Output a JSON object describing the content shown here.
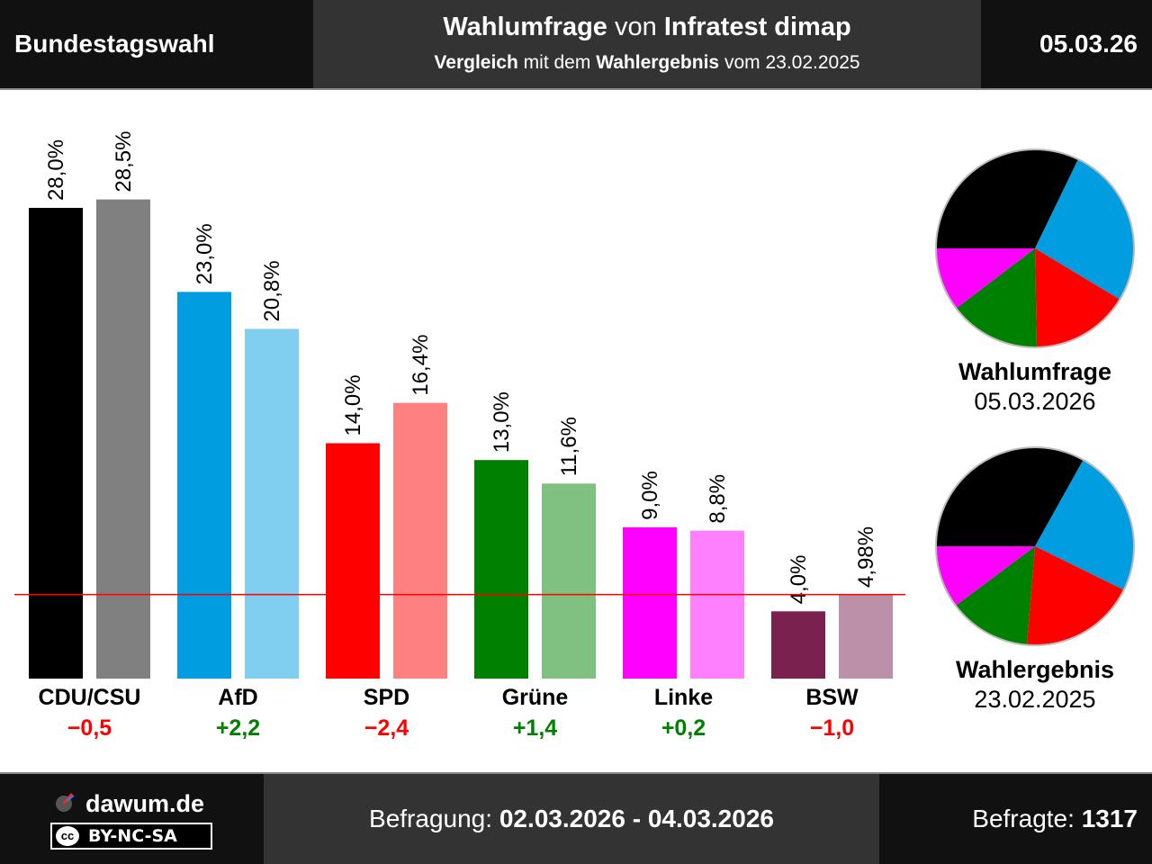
{
  "header": {
    "left_title": "Bundestagswahl",
    "mid_line1_bold1": "Wahlumfrage",
    "mid_line1_normal": "von",
    "mid_line1_bold2": "Infratest dimap",
    "mid_line2_bold1": "Vergleich",
    "mid_line2_normal1": "mit dem",
    "mid_line2_bold2": "Wahlergebnis",
    "mid_line2_normal2": "vom 23.02.2025",
    "date": "05.03.26"
  },
  "chart_data": {
    "type": "bar",
    "categories": [
      "CDU/CSU",
      "AfD",
      "SPD",
      "Grüne",
      "Linke",
      "BSW"
    ],
    "series": [
      {
        "name": "Wahlumfrage",
        "values": [
          28.0,
          23.0,
          14.0,
          13.0,
          9.0,
          4.0
        ],
        "labels": [
          "28,0%",
          "23,0%",
          "14,0%",
          "13,0%",
          "9,0%",
          "4,0%"
        ],
        "colors": [
          "#000000",
          "#009ee0",
          "#ff0000",
          "#008000",
          "#ff00ff",
          "#7a2150"
        ]
      },
      {
        "name": "Wahlergebnis",
        "values": [
          28.5,
          20.8,
          16.4,
          11.6,
          8.8,
          4.98
        ],
        "labels": [
          "28,5%",
          "20,8%",
          "16,4%",
          "11,6%",
          "8,8%",
          "4,98%"
        ],
        "colors": [
          "#808080",
          "#80cff0",
          "#ff8080",
          "#80c080",
          "#ff80ff",
          "#bc90a8"
        ]
      }
    ],
    "differences": [
      "−0,5",
      "+2,2",
      "−2,4",
      "+1,4",
      "+0,2",
      "−1,0"
    ],
    "difference_colors": [
      "#ff0000",
      "#008000",
      "#ff0000",
      "#008000",
      "#008000",
      "#ff0000"
    ],
    "threshold": 5,
    "threshold_color": "#ff0000",
    "ylim": [
      0,
      30
    ],
    "pies": [
      {
        "title": "Wahlumfrage",
        "date": "05.03.2026",
        "slices": [
          28.0,
          23.0,
          14.0,
          13.0,
          9.0
        ],
        "colors": [
          "#000000",
          "#009ee0",
          "#ff0000",
          "#008000",
          "#ff00ff"
        ]
      },
      {
        "title": "Wahlergebnis",
        "date": "23.02.2025",
        "slices": [
          28.5,
          20.8,
          16.4,
          11.6,
          8.8
        ],
        "colors": [
          "#000000",
          "#009ee0",
          "#ff0000",
          "#008000",
          "#ff00ff"
        ]
      }
    ]
  },
  "footer": {
    "brand": "dawum.de",
    "license": "BY-NC-SA",
    "license_badge": "cc",
    "survey_label": "Befragung:",
    "survey_range": "02.03.2026 - 04.03.2026",
    "respondents_label": "Befragte:",
    "respondents": "1317"
  }
}
